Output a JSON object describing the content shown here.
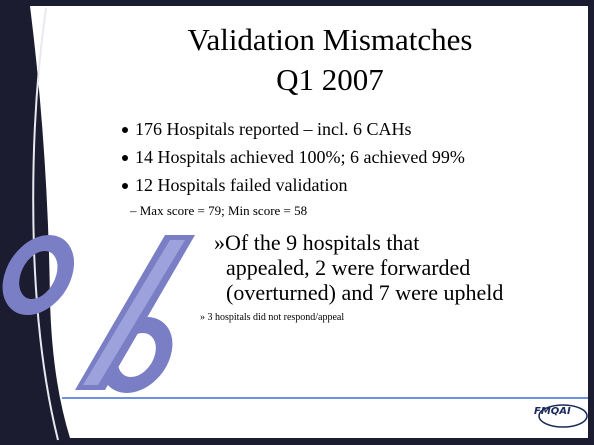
{
  "slide": {
    "title": [
      "Validation Mismatches",
      "Q1 2007"
    ],
    "bullets": [
      "176 Hospitals reported – incl. 6 CAHs",
      "14 Hospitals achieved 100%; 6 achieved 99%",
      "12 Hospitals failed validation"
    ],
    "sub_bullet": "– Max score = 79; Min score = 58",
    "appeal_lines": [
      "»Of the 9 hospitals that",
      "appealed, 2 were forwarded",
      "(overturned) and 7 were upheld"
    ],
    "note": "» 3 hospitals did not respond/appeal",
    "logo": "FMQAI"
  }
}
